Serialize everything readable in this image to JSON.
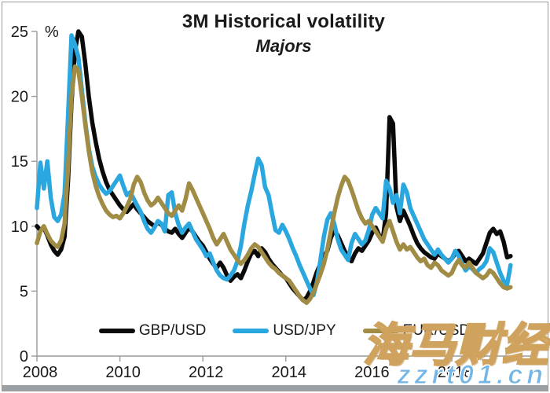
{
  "title": "3M Historical volatility",
  "subtitle": "Majors",
  "y_axis_unit": "%",
  "watermark": {
    "brand": "海马财经",
    "site": "zzrt01.cn"
  },
  "colors": {
    "gbpusd": "#0a0a0a",
    "usdjpy": "#2AA7DF",
    "eurusd": "#A08C44",
    "axis": "#9a9a9a",
    "tick_text": "#1a1a1a",
    "watermark_brand": "#cfa25e",
    "watermark_site": "#74b6e6"
  },
  "legend": [
    {
      "label": "GBP/USD",
      "color": "#0a0a0a"
    },
    {
      "label": "USD/JPY",
      "color": "#2AA7DF"
    },
    {
      "label": "EUR/USD",
      "color": "#A08C44"
    }
  ],
  "chart_data": {
    "type": "line",
    "title": "3M Historical volatility",
    "subtitle": "Majors",
    "xlabel": "",
    "ylabel": "%",
    "ylim": [
      0,
      25
    ],
    "yticks": [
      0,
      5,
      10,
      15,
      20,
      25
    ],
    "xticks": [
      2008,
      2010,
      2012,
      2014,
      2016,
      2018
    ],
    "x_start": 2008,
    "x_end": 2019.5,
    "points_per_year": 12,
    "grid": false,
    "legend_position": "bottom-inside",
    "series": [
      {
        "name": "GBP/USD",
        "color": "#0a0a0a",
        "values": [
          10.0,
          9.7,
          9.9,
          9.3,
          8.6,
          8.1,
          7.8,
          8.2,
          9.2,
          13.5,
          19.5,
          23.5,
          25.0,
          24.6,
          22.5,
          20.0,
          18.0,
          16.5,
          15.2,
          14.2,
          13.4,
          12.8,
          12.4,
          12.0,
          11.6,
          11.3,
          11.1,
          11.4,
          11.7,
          11.3,
          11.0,
          10.7,
          10.4,
          10.2,
          10.0,
          10.3,
          10.1,
          9.8,
          9.6,
          9.5,
          9.8,
          9.4,
          9.1,
          9.5,
          9.9,
          9.6,
          9.2,
          8.8,
          8.5,
          8.0,
          7.5,
          7.1,
          6.8,
          7.2,
          6.8,
          6.2,
          5.8,
          6.1,
          6.3,
          6.0,
          6.6,
          7.3,
          7.9,
          8.1,
          7.7,
          8.3,
          8.0,
          7.5,
          7.1,
          6.8,
          6.5,
          6.2,
          6.0,
          5.6,
          5.2,
          4.9,
          4.6,
          4.3,
          4.5,
          5.0,
          5.7,
          6.5,
          7.1,
          7.7,
          8.1,
          9.1,
          9.7,
          9.3,
          8.7,
          8.1,
          7.6,
          7.3,
          7.9,
          8.3,
          8.1,
          8.5,
          8.9,
          9.5,
          9.9,
          9.3,
          8.9,
          11.0,
          18.4,
          17.9,
          11.5,
          10.4,
          11.2,
          10.6,
          10.0,
          9.3,
          8.7,
          8.3,
          8.0,
          7.8,
          7.6,
          7.5,
          7.9,
          7.7,
          7.5,
          7.3,
          7.5,
          7.9,
          8.1,
          7.7,
          7.3,
          7.5,
          7.3,
          7.1,
          7.5,
          7.9,
          8.7,
          9.5,
          9.8,
          9.4,
          9.6,
          8.8,
          7.6,
          7.7
        ]
      },
      {
        "name": "USD/JPY",
        "color": "#2AA7DF",
        "values": [
          11.4,
          14.9,
          12.9,
          15.0,
          12.2,
          10.7,
          10.4,
          10.9,
          12.5,
          18.5,
          24.7,
          24.0,
          23.0,
          20.5,
          18.0,
          16.0,
          14.6,
          13.8,
          13.2,
          12.8,
          12.5,
          12.7,
          13.1,
          13.5,
          13.9,
          13.1,
          12.4,
          12.6,
          12.1,
          11.6,
          11.1,
          10.4,
          9.8,
          9.5,
          9.9,
          10.4,
          10.2,
          9.6,
          12.4,
          12.6,
          11.0,
          10.1,
          9.5,
          9.9,
          10.2,
          9.6,
          9.0,
          8.6,
          8.2,
          7.7,
          7.9,
          7.2,
          6.6,
          6.2,
          6.0,
          5.9,
          6.2,
          6.6,
          7.3,
          8.5,
          10.2,
          11.6,
          12.7,
          14.0,
          15.2,
          14.7,
          13.0,
          12.4,
          11.0,
          9.7,
          9.5,
          10.1,
          9.6,
          9.0,
          8.3,
          7.7,
          7.0,
          6.4,
          5.8,
          5.2,
          4.7,
          5.7,
          7.4,
          9.2,
          10.5,
          11.0,
          10.2,
          9.0,
          8.2,
          7.8,
          7.4,
          8.7,
          9.4,
          9.0,
          8.6,
          8.9,
          9.7,
          10.9,
          11.4,
          11.0,
          10.6,
          13.5,
          12.9,
          11.8,
          12.4,
          11.0,
          13.2,
          12.6,
          11.4,
          10.8,
          10.2,
          9.6,
          9.0,
          8.6,
          8.2,
          7.8,
          8.2,
          7.8,
          7.5,
          7.2,
          7.5,
          8.1,
          7.7,
          7.1,
          6.6,
          6.9,
          6.7,
          6.4,
          6.7,
          6.9,
          7.3,
          8.3,
          8.0,
          7.2,
          6.4,
          5.8,
          5.5,
          7.0
        ]
      },
      {
        "name": "EUR/USD",
        "color": "#A08C44",
        "values": [
          8.7,
          9.6,
          10.0,
          9.4,
          8.9,
          8.6,
          8.4,
          8.9,
          10.2,
          14.5,
          20.0,
          22.3,
          22.0,
          20.0,
          17.8,
          15.8,
          14.2,
          13.1,
          12.3,
          11.7,
          11.2,
          10.9,
          10.7,
          10.8,
          10.6,
          11.0,
          11.5,
          12.1,
          13.2,
          13.8,
          13.4,
          12.6,
          12.0,
          11.6,
          11.8,
          12.2,
          11.8,
          11.4,
          11.0,
          10.8,
          11.2,
          11.6,
          11.2,
          12.1,
          13.3,
          12.8,
          12.2,
          11.6,
          11.0,
          10.4,
          9.8,
          9.1,
          8.6,
          9.0,
          9.4,
          8.8,
          8.2,
          7.8,
          7.4,
          7.1,
          7.4,
          7.8,
          8.3,
          8.6,
          8.4,
          8.0,
          7.6,
          7.2,
          6.9,
          6.7,
          6.4,
          6.2,
          6.0,
          5.8,
          5.4,
          5.0,
          4.6,
          4.3,
          4.1,
          4.4,
          4.9,
          5.6,
          6.3,
          7.1,
          8.2,
          9.6,
          11.0,
          12.2,
          13.1,
          13.8,
          13.5,
          12.8,
          12.0,
          11.2,
          10.6,
          10.2,
          10.4,
          10.0,
          9.6,
          9.2,
          8.8,
          9.8,
          10.4,
          9.6,
          8.8,
          8.2,
          8.6,
          8.2,
          8.4,
          8.0,
          7.6,
          7.3,
          7.5,
          7.0,
          6.8,
          7.2,
          7.0,
          6.6,
          6.4,
          6.2,
          6.4,
          7.0,
          7.4,
          7.0,
          6.8,
          7.2,
          6.8,
          6.4,
          6.2,
          6.0,
          6.2,
          6.6,
          6.4,
          6.0,
          5.6,
          5.3,
          5.2,
          5.3
        ]
      }
    ]
  }
}
